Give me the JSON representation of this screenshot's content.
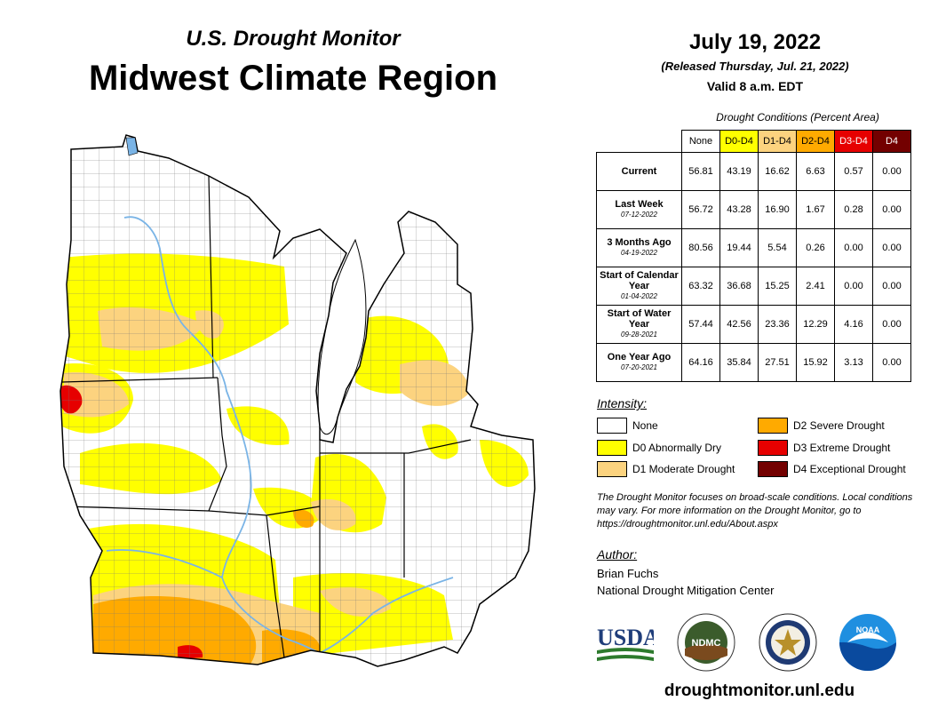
{
  "header": {
    "subtitle": "U.S. Drought Monitor",
    "title": "Midwest Climate Region",
    "date": "July 19, 2022",
    "released": "(Released Thursday, Jul. 21, 2022)",
    "valid": "Valid 8 a.m. EDT"
  },
  "stats": {
    "caption": "Drought Conditions (Percent Area)",
    "columns": [
      {
        "label": "None",
        "color": "#ffffff",
        "text_color": "#000000"
      },
      {
        "label": "D0-D4",
        "color": "#ffff00",
        "text_color": "#000000"
      },
      {
        "label": "D1-D4",
        "color": "#fcd37f",
        "text_color": "#000000"
      },
      {
        "label": "D2-D4",
        "color": "#ffaa00",
        "text_color": "#000000"
      },
      {
        "label": "D3-D4",
        "color": "#e60000",
        "text_color": "#ffffff"
      },
      {
        "label": "D4",
        "color": "#730000",
        "text_color": "#ffffff"
      }
    ],
    "rows": [
      {
        "label": "Current",
        "date": "",
        "values": [
          "56.81",
          "43.19",
          "16.62",
          "6.63",
          "0.57",
          "0.00"
        ]
      },
      {
        "label": "Last Week",
        "date": "07-12-2022",
        "values": [
          "56.72",
          "43.28",
          "16.90",
          "1.67",
          "0.28",
          "0.00"
        ]
      },
      {
        "label": "3 Months Ago",
        "date": "04-19-2022",
        "values": [
          "80.56",
          "19.44",
          "5.54",
          "0.26",
          "0.00",
          "0.00"
        ]
      },
      {
        "label": "Start of Calendar Year",
        "date": "01-04-2022",
        "values": [
          "63.32",
          "36.68",
          "15.25",
          "2.41",
          "0.00",
          "0.00"
        ]
      },
      {
        "label": "Start of Water Year",
        "date": "09-28-2021",
        "values": [
          "57.44",
          "42.56",
          "23.36",
          "12.29",
          "4.16",
          "0.00"
        ]
      },
      {
        "label": "One Year Ago",
        "date": "07-20-2021",
        "values": [
          "64.16",
          "35.84",
          "27.51",
          "15.92",
          "3.13",
          "0.00"
        ]
      }
    ]
  },
  "legend": {
    "title": "Intensity:",
    "items": [
      {
        "label": "None",
        "color": "#ffffff"
      },
      {
        "label": "D0 Abnormally Dry",
        "color": "#ffff00"
      },
      {
        "label": "D1 Moderate Drought",
        "color": "#fcd37f"
      },
      {
        "label": "D2 Severe Drought",
        "color": "#ffaa00"
      },
      {
        "label": "D3 Extreme Drought",
        "color": "#e60000"
      },
      {
        "label": "D4 Exceptional Drought",
        "color": "#730000"
      }
    ]
  },
  "note": "The Drought Monitor focuses on broad-scale conditions. Local conditions may vary. For more information on the Drought Monitor, go to https://droughtmonitor.unl.edu/About.aspx",
  "author": {
    "title": "Author:",
    "name": "Brian Fuchs",
    "org": "National Drought Mitigation Center"
  },
  "logos": {
    "usda": "USDA",
    "ndmc": "NDMC",
    "noaa": "NOAA"
  },
  "website": "droughtmonitor.unl.edu",
  "map": {
    "water_color": "#7ab4e6"
  }
}
